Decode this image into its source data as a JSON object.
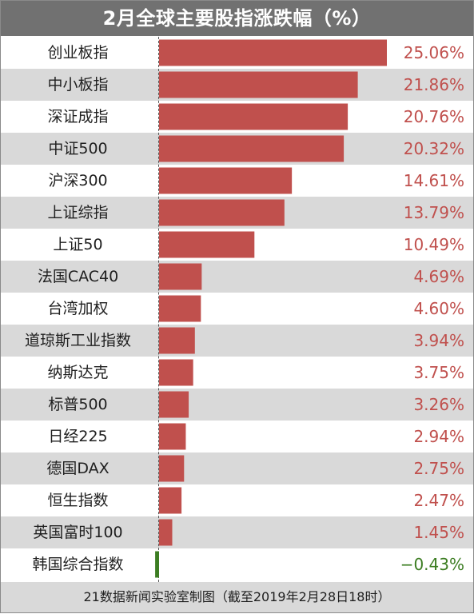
{
  "header": {
    "title": "2月全球主要股指涨跌幅（%）"
  },
  "footer": {
    "note": "21数据新闻实验室制图（截至2019年2月28日18时）"
  },
  "colors": {
    "positive": "#c0504d",
    "negative": "#3c7d22",
    "stripe": "#d9d9d9",
    "title_bg": "#717171"
  },
  "chart_data": {
    "type": "bar",
    "orientation": "horizontal",
    "title": "2月全球主要股指涨跌幅（%）",
    "xlabel": "",
    "ylabel": "",
    "categories": [
      "创业板指",
      "中小板指",
      "深证成指",
      "中证500",
      "沪深300",
      "上证综指",
      "上证50",
      "法国CAC40",
      "台湾加权",
      "道琼斯工业指数",
      "纳斯达克",
      "标普500",
      "日经225",
      "德国DAX",
      "恒生指数",
      "英国富时100",
      "韩国综合指数"
    ],
    "values": [
      25.06,
      21.86,
      20.76,
      20.32,
      14.61,
      13.79,
      10.49,
      4.69,
      4.6,
      3.94,
      3.75,
      3.26,
      2.94,
      2.75,
      2.47,
      1.45,
      -0.43
    ],
    "value_labels": [
      "25.06%",
      "21.86%",
      "20.76%",
      "20.32%",
      "14.61%",
      "13.79%",
      "10.49%",
      "4.69%",
      "4.60%",
      "3.94%",
      "3.75%",
      "3.26%",
      "2.94%",
      "2.75%",
      "2.47%",
      "1.45%",
      "−0.43%"
    ],
    "xlim": [
      0,
      25.06
    ],
    "grid": false,
    "legend": "none"
  }
}
